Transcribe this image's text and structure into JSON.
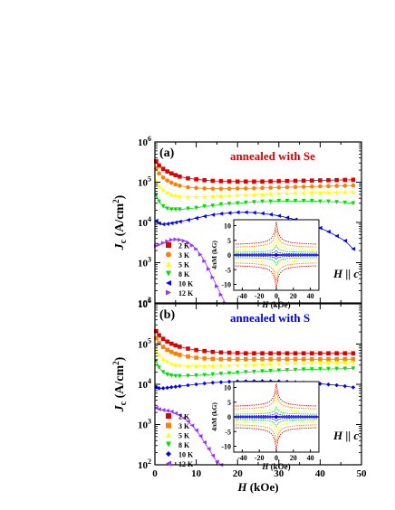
{
  "chart_data": [
    {
      "type": "scatter",
      "panel_label": "(a)",
      "annotation": "annealed with Se",
      "annotation_color": "#e00000",
      "field_label": "H || c",
      "ylabel": "J_c (A/cm^2)",
      "yscale": "log",
      "ylim": [
        100,
        1000000
      ],
      "y_tick_labels": [
        "10^2",
        "10^3",
        "10^4",
        "10^5",
        "10^6"
      ],
      "xlim": [
        0,
        50
      ],
      "series": [
        {
          "name": "2 K",
          "marker": "square",
          "color": "#e00000",
          "x": [
            0.3,
            1,
            2,
            3,
            4,
            5,
            6,
            8,
            10,
            12,
            14,
            16,
            18,
            20,
            22,
            24,
            26,
            28,
            30,
            32,
            34,
            36,
            38,
            40,
            42,
            44,
            46,
            48
          ],
          "y": [
            330000,
            260000,
            215000,
            185000,
            165000,
            150000,
            138000,
            125000,
            118000,
            112000,
            108000,
            106000,
            105000,
            104000,
            104000,
            104000,
            104000,
            105000,
            106000,
            107000,
            108000,
            109000,
            110000,
            111000,
            112000,
            113000,
            114000,
            115000
          ]
        },
        {
          "name": "3 K",
          "marker": "circle",
          "color": "#ff7f00",
          "x": [
            0.3,
            1,
            2,
            3,
            4,
            5,
            6,
            8,
            10,
            12,
            14,
            16,
            18,
            20,
            22,
            24,
            26,
            28,
            30,
            32,
            34,
            36,
            38,
            40,
            42,
            44,
            46,
            48
          ],
          "y": [
            220000,
            165000,
            130000,
            110000,
            97000,
            88000,
            82000,
            75000,
            72000,
            70000,
            69000,
            69000,
            69000,
            70000,
            70000,
            71000,
            72000,
            73000,
            74000,
            75000,
            76000,
            77000,
            78000,
            79000,
            80000,
            81000,
            82000,
            83000
          ]
        },
        {
          "name": "5 K",
          "marker": "triangle-up",
          "color": "#ffff00",
          "x": [
            0.3,
            1,
            2,
            3,
            4,
            5,
            6,
            8,
            10,
            12,
            14,
            16,
            18,
            20,
            22,
            24,
            26,
            28,
            30,
            32,
            34,
            36,
            38,
            40,
            42,
            44,
            46,
            48
          ],
          "y": [
            110000,
            82000,
            65000,
            56000,
            50000,
            47000,
            45000,
            44000,
            44000,
            44000,
            45000,
            46000,
            47000,
            48000,
            49000,
            50000,
            51000,
            52000,
            53000,
            54000,
            55000,
            55000,
            56000,
            56000,
            57000,
            57000,
            58000,
            58000
          ]
        },
        {
          "name": "8 K",
          "marker": "triangle-down",
          "color": "#00e000",
          "x": [
            0.3,
            1,
            2,
            3,
            4,
            5,
            6,
            8,
            10,
            12,
            14,
            16,
            18,
            20,
            22,
            24,
            26,
            28,
            30,
            32,
            34,
            36,
            38,
            40,
            42,
            44,
            46,
            48
          ],
          "y": [
            48000,
            33000,
            25000,
            22000,
            21000,
            21000,
            21000,
            22000,
            23000,
            25000,
            26000,
            28000,
            29000,
            30000,
            31000,
            32000,
            33000,
            33000,
            34000,
            34000,
            34000,
            34000,
            34000,
            33000,
            33000,
            32000,
            31000,
            30000
          ]
        },
        {
          "name": "10 K",
          "marker": "triangle-left",
          "color": "#0000ff",
          "x": [
            0.3,
            1,
            2,
            3,
            4,
            5,
            6,
            8,
            10,
            12,
            14,
            16,
            18,
            20,
            22,
            24,
            26,
            28,
            30,
            32,
            34,
            36,
            38,
            40,
            42,
            44,
            46,
            48
          ],
          "y": [
            11000,
            9500,
            9000,
            9200,
            9600,
            10000,
            10500,
            11500,
            12800,
            14200,
            15500,
            16500,
            17200,
            17800,
            17900,
            17500,
            16800,
            15800,
            14600,
            13200,
            11800,
            10300,
            8800,
            7300,
            5900,
            4600,
            3500,
            2200
          ]
        },
        {
          "name": "12 K",
          "marker": "triangle-right",
          "color": "#9a30ff",
          "x": [
            0.3,
            1,
            2,
            3,
            4,
            5,
            6,
            7,
            8,
            9,
            10,
            11,
            12,
            13,
            14,
            15,
            16,
            17
          ],
          "y": [
            2600,
            2800,
            3100,
            3400,
            3700,
            3800,
            3700,
            3500,
            3200,
            2700,
            2200,
            1600,
            1100,
            700,
            430,
            260,
            160,
            100
          ]
        }
      ],
      "inset": {
        "xlabel": "H (kOe)",
        "ylabel": "4πM (kG)",
        "x_ticks": [
          "-40",
          "-20",
          "0",
          "20",
          "40"
        ],
        "y_ticks": [
          "10",
          "5",
          "0",
          "-5",
          "-10"
        ],
        "xlim": [
          -50,
          50
        ],
        "ylim": [
          -12,
          12
        ]
      }
    },
    {
      "type": "scatter",
      "panel_label": "(b)",
      "annotation": "annealed with S",
      "annotation_color": "#0000ff",
      "field_label": "H || c",
      "ylabel": "J_c (A/cm^2)",
      "xlabel": "H (kOe)",
      "yscale": "log",
      "ylim": [
        100,
        1000000
      ],
      "y_tick_labels": [
        "10^2",
        "10^3",
        "10^4",
        "10^5",
        "10^6"
      ],
      "xlim": [
        0,
        50
      ],
      "x_tick_labels": [
        "0",
        "10",
        "20",
        "30",
        "40",
        "50"
      ],
      "series": [
        {
          "name": "2 K",
          "marker": "square",
          "color": "#e00000",
          "x": [
            0.3,
            1,
            2,
            3,
            4,
            5,
            6,
            8,
            10,
            12,
            14,
            16,
            18,
            20,
            22,
            24,
            26,
            28,
            30,
            32,
            34,
            36,
            38,
            40,
            42,
            44,
            46,
            48
          ],
          "y": [
            210000,
            165000,
            135000,
            115000,
            102000,
            93000,
            86000,
            77000,
            71000,
            67000,
            64000,
            62000,
            61000,
            60000,
            59000,
            59000,
            59000,
            59000,
            59000,
            59000,
            59000,
            59000,
            59000,
            59000,
            59000,
            59000,
            59000,
            59000
          ]
        },
        {
          "name": "3 K",
          "marker": "square",
          "color": "#ff7f00",
          "x": [
            0.3,
            1,
            2,
            3,
            4,
            5,
            6,
            8,
            10,
            12,
            14,
            16,
            18,
            20,
            22,
            24,
            26,
            28,
            30,
            32,
            34,
            36,
            38,
            40,
            42,
            44,
            46,
            48
          ],
          "y": [
            140000,
            105000,
            85000,
            72000,
            64000,
            58000,
            54000,
            49000,
            46000,
            44000,
            43000,
            42000,
            42000,
            42000,
            42000,
            42000,
            42000,
            42000,
            42000,
            42000,
            42000,
            42000,
            42000,
            42000,
            42000,
            42000,
            42000,
            42000
          ]
        },
        {
          "name": "5 K",
          "marker": "triangle-up",
          "color": "#ffff00",
          "x": [
            0.3,
            1,
            2,
            3,
            4,
            5,
            6,
            8,
            10,
            12,
            14,
            16,
            18,
            20,
            22,
            24,
            26,
            28,
            30,
            32,
            34,
            36,
            38,
            40,
            42,
            44,
            46,
            48
          ],
          "y": [
            75000,
            55000,
            43000,
            37000,
            33000,
            31000,
            30000,
            29000,
            29000,
            29000,
            29000,
            29500,
            30000,
            30500,
            31000,
            31500,
            32000,
            32500,
            33000,
            33500,
            34000,
            34000,
            34500,
            35000,
            35000,
            35500,
            35500,
            36000
          ]
        },
        {
          "name": "8 K",
          "marker": "triangle-down",
          "color": "#00e000",
          "x": [
            0.3,
            1,
            2,
            3,
            4,
            5,
            6,
            8,
            10,
            12,
            14,
            16,
            18,
            20,
            22,
            24,
            26,
            28,
            30,
            32,
            34,
            36,
            38,
            40,
            42,
            44,
            46,
            48
          ],
          "y": [
            38000,
            26000,
            20000,
            17500,
            16500,
            16000,
            16000,
            16200,
            16600,
            17000,
            17600,
            18200,
            18800,
            19400,
            20000,
            20500,
            21000,
            21500,
            22000,
            22400,
            22800,
            23200,
            23500,
            23800,
            24000,
            24200,
            24400,
            24600
          ]
        },
        {
          "name": "10 K",
          "marker": "diamond",
          "color": "#0000ff",
          "x": [
            0.3,
            1,
            2,
            3,
            4,
            5,
            6,
            8,
            10,
            12,
            14,
            16,
            18,
            20,
            22,
            24,
            26,
            28,
            30,
            32,
            34,
            36,
            38,
            40,
            42,
            44,
            46,
            48
          ],
          "y": [
            8500,
            8000,
            8000,
            8200,
            8500,
            8700,
            9000,
            9500,
            10000,
            10500,
            11000,
            11300,
            11600,
            11800,
            11900,
            12000,
            12000,
            11900,
            11800,
            11600,
            11300,
            11000,
            10700,
            10300,
            9900,
            9500,
            9000,
            8400
          ]
        },
        {
          "name": "12 K",
          "marker": "triangle-left",
          "color": "#9a30ff",
          "x": [
            0.3,
            1,
            2,
            3,
            4,
            5,
            6,
            7,
            8,
            9,
            10,
            11,
            12,
            13,
            14,
            15,
            16
          ],
          "y": [
            2600,
            2400,
            2300,
            2200,
            2100,
            1900,
            1700,
            1450,
            1200,
            950,
            720,
            520,
            360,
            250,
            170,
            120,
            100
          ]
        }
      ],
      "inset": {
        "xlabel": "H (kOe)",
        "ylabel": "4πM (kG)",
        "x_ticks": [
          "-40",
          "-20",
          "0",
          "20",
          "40"
        ],
        "y_ticks": [
          "10",
          "5",
          "0",
          "-5",
          "-10"
        ],
        "xlim": [
          -50,
          50
        ],
        "ylim": [
          -12,
          12
        ]
      }
    }
  ]
}
